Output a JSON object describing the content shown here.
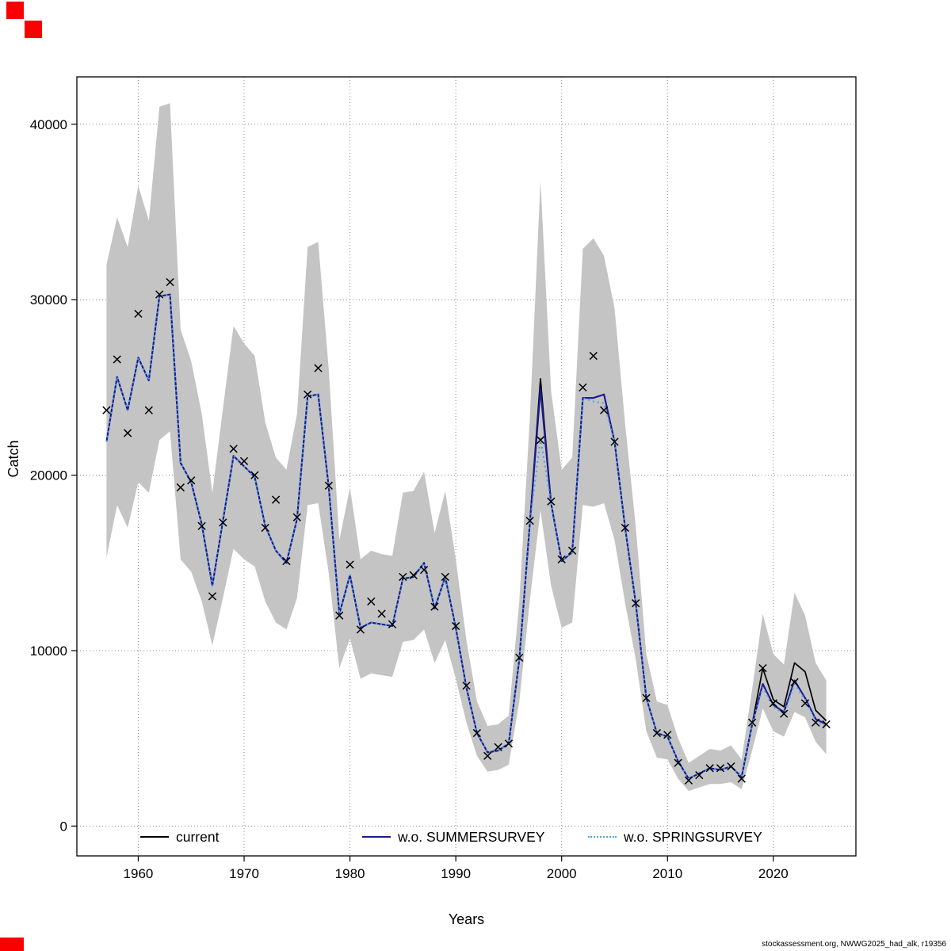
{
  "footer": "stockassessment.org, NWWG2025_had_alk, r19356",
  "axes": {
    "x_label": "Years",
    "y_label": "Catch",
    "x_tick_values": [
      1960,
      1970,
      1980,
      1990,
      2000,
      2010,
      2020
    ],
    "x_tick_labels": [
      "1960",
      "1970",
      "1980",
      "1990",
      "2000",
      "2010",
      "2020"
    ],
    "y_tick_values": [
      0,
      10000,
      20000,
      30000,
      40000
    ],
    "y_tick_labels": [
      "0",
      "10000",
      "20000",
      "30000",
      "40000"
    ],
    "x_range": [
      1954.2,
      2027.8
    ],
    "y_range": [
      -1700,
      42700
    ],
    "grid": true
  },
  "accent_marks_color": "#fb0000",
  "chart_data": {
    "type": "line",
    "title": "",
    "xlabel": "Years",
    "ylabel": "Catch",
    "legend_position": "bottom-inside",
    "x": [
      1957,
      1958,
      1959,
      1960,
      1961,
      1962,
      1963,
      1964,
      1965,
      1966,
      1967,
      1968,
      1969,
      1970,
      1971,
      1972,
      1973,
      1974,
      1975,
      1976,
      1977,
      1978,
      1979,
      1980,
      1981,
      1982,
      1983,
      1984,
      1985,
      1986,
      1987,
      1988,
      1989,
      1990,
      1991,
      1992,
      1993,
      1994,
      1995,
      1996,
      1997,
      1998,
      1999,
      2000,
      2001,
      2002,
      2003,
      2004,
      2005,
      2006,
      2007,
      2008,
      2009,
      2010,
      2011,
      2012,
      2013,
      2014,
      2015,
      2016,
      2017,
      2018,
      2019,
      2020,
      2021,
      2022,
      2023,
      2024,
      2025
    ],
    "series": [
      {
        "name": "current",
        "color": "#000000",
        "style": "solid",
        "values": [
          21900,
          25600,
          23700,
          26700,
          25400,
          30200,
          30300,
          20700,
          19600,
          17200,
          13700,
          17400,
          21100,
          20500,
          19900,
          17100,
          15700,
          15000,
          17500,
          24500,
          24600,
          19300,
          12100,
          14300,
          11300,
          11600,
          11500,
          11400,
          14100,
          14200,
          15000,
          12400,
          14200,
          11300,
          7900,
          5300,
          4200,
          4300,
          4700,
          9500,
          17300,
          25500,
          18400,
          15100,
          15600,
          24400,
          24400,
          24600,
          21900,
          17000,
          12700,
          7300,
          5300,
          5100,
          3700,
          2700,
          3000,
          3300,
          3200,
          3400,
          2800,
          5800,
          9000,
          7200,
          6800,
          9300,
          8800,
          6600,
          6000
        ]
      },
      {
        "name": "w.o. SUMMERSURVEY",
        "color": "#1b1b8f",
        "style": "solid",
        "values": [
          21900,
          25600,
          23700,
          26700,
          25400,
          30200,
          30300,
          20700,
          19600,
          17200,
          13700,
          17400,
          21100,
          20500,
          19900,
          17100,
          15700,
          15000,
          17500,
          24500,
          24600,
          19300,
          12100,
          14300,
          11300,
          11600,
          11500,
          11400,
          14100,
          14200,
          15000,
          12400,
          14200,
          11300,
          7900,
          5300,
          4200,
          4300,
          4700,
          9500,
          17300,
          24900,
          18400,
          15100,
          15600,
          24400,
          24400,
          24600,
          21900,
          17000,
          12700,
          7300,
          5300,
          5100,
          3700,
          2700,
          3000,
          3300,
          3200,
          3400,
          2800,
          5800,
          8100,
          6900,
          6500,
          8300,
          7300,
          6100,
          5800
        ]
      },
      {
        "name": "w.o. SPRINGSURVEY",
        "color": "#4da0e6",
        "style": "dotted",
        "values": [
          21900,
          25600,
          23700,
          26700,
          25400,
          30200,
          30300,
          20700,
          19600,
          17200,
          13700,
          17400,
          21100,
          20500,
          19900,
          17100,
          15700,
          15000,
          17500,
          24500,
          24600,
          19300,
          12100,
          14300,
          11300,
          11600,
          11500,
          11400,
          14100,
          14200,
          15000,
          12400,
          14200,
          11300,
          7900,
          5300,
          4200,
          4300,
          4700,
          9500,
          17300,
          22100,
          18400,
          15100,
          15600,
          24400,
          24200,
          24100,
          21900,
          17000,
          12700,
          7300,
          5300,
          5100,
          3700,
          2700,
          3000,
          3300,
          3200,
          3400,
          2800,
          5800,
          7900,
          6800,
          6400,
          8100,
          7200,
          6000,
          5700
        ]
      }
    ],
    "band": {
      "color": "#c4c4c4",
      "lower": [
        15300,
        18300,
        17000,
        19600,
        19000,
        22000,
        22500,
        15200,
        14500,
        12800,
        10300,
        13000,
        15800,
        15200,
        14800,
        12800,
        11600,
        11200,
        13000,
        18300,
        18400,
        14400,
        9000,
        10700,
        8400,
        8700,
        8600,
        8500,
        10500,
        10600,
        11200,
        9300,
        10600,
        8400,
        5900,
        4000,
        3100,
        3200,
        3500,
        7100,
        12900,
        18000,
        13700,
        11300,
        11600,
        18300,
        18200,
        18400,
        16300,
        12700,
        9500,
        5400,
        3900,
        3800,
        2700,
        2000,
        2200,
        2400,
        2400,
        2500,
        2100,
        4300,
        6700,
        5400,
        5100,
        6500,
        6200,
        4800,
        4100
      ],
      "upper": [
        32000,
        34700,
        33000,
        36500,
        34500,
        41000,
        41200,
        28300,
        26500,
        23500,
        19000,
        23800,
        28500,
        27500,
        26800,
        23000,
        21000,
        20300,
        23500,
        33000,
        33300,
        26000,
        16300,
        19300,
        15200,
        15700,
        15500,
        15400,
        19000,
        19100,
        20200,
        16700,
        19100,
        15200,
        10600,
        7100,
        5700,
        5800,
        6300,
        12800,
        23300,
        36800,
        24800,
        20300,
        21000,
        32900,
        33500,
        32500,
        29500,
        22900,
        17100,
        9800,
        7100,
        6900,
        5000,
        3600,
        4000,
        4400,
        4300,
        4600,
        3800,
        7800,
        12100,
        9800,
        9200,
        13300,
        12000,
        9300,
        8300
      ]
    },
    "observations": {
      "marker": "x",
      "color": "#000000",
      "values": [
        23700,
        26600,
        22400,
        29200,
        23700,
        30300,
        31000,
        19300,
        19700,
        17100,
        13100,
        17300,
        21500,
        20800,
        20000,
        17000,
        18600,
        15100,
        17600,
        24600,
        26100,
        19400,
        12000,
        14900,
        11200,
        12800,
        12100,
        11500,
        14200,
        14300,
        14600,
        12500,
        14200,
        11400,
        8000,
        5300,
        4000,
        4500,
        4700,
        9600,
        17400,
        22000,
        18500,
        15200,
        15700,
        25000,
        26800,
        23700,
        21900,
        17000,
        12700,
        7300,
        5300,
        5200,
        3600,
        2600,
        2900,
        3300,
        3300,
        3400,
        2700,
        5900,
        9000,
        7000,
        6400,
        8200,
        7000,
        5900,
        5800
      ]
    }
  }
}
